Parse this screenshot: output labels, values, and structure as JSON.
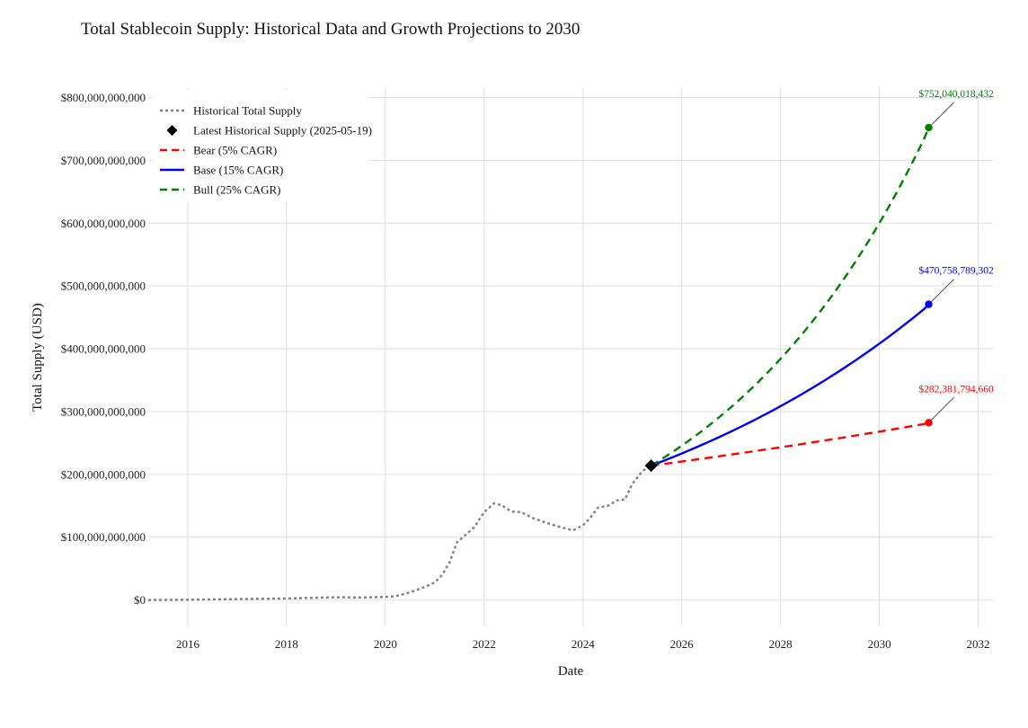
{
  "chart_data": {
    "type": "line",
    "title": "Total Stablecoin Supply: Historical Data and Growth Projections to 2030",
    "xlabel": "Date",
    "ylabel": "Total Supply (USD)",
    "xlim": [
      2015.2,
      2032.3
    ],
    "ylim": [
      -42000000000,
      815000000000
    ],
    "x_ticks": [
      2016,
      2018,
      2020,
      2022,
      2024,
      2026,
      2028,
      2030,
      2032
    ],
    "x_tick_labels": [
      "2016",
      "2018",
      "2020",
      "2022",
      "2024",
      "2026",
      "2028",
      "2030",
      "2032"
    ],
    "y_ticks": [
      0,
      100000000000,
      200000000000,
      300000000000,
      400000000000,
      500000000000,
      600000000000,
      700000000000,
      800000000000
    ],
    "y_tick_labels": [
      "$0",
      "$100,000,000,000",
      "$200,000,000,000",
      "$300,000,000,000",
      "$400,000,000,000",
      "$500,000,000,000",
      "$600,000,000,000",
      "$700,000,000,000",
      "$800,000,000,000"
    ],
    "grid": true,
    "legend_position": "top-left",
    "legend": [
      {
        "label": "Historical Total Supply",
        "style": "dotted-line",
        "color": "#808080"
      },
      {
        "label": "Latest Historical Supply (2025-05-19)",
        "style": "diamond",
        "color": "#000000"
      },
      {
        "label": "Bear (5% CAGR)",
        "style": "dashed-line",
        "color": "#ff0000"
      },
      {
        "label": "Base (15% CAGR)",
        "style": "solid-line",
        "color": "#0000ff"
      },
      {
        "label": "Bull (25% CAGR)",
        "style": "dashed-line",
        "color": "#008000"
      }
    ],
    "series": [
      {
        "name": "Historical Total Supply",
        "color": "#808080",
        "style": "dotted",
        "points": [
          [
            2015.2,
            0
          ],
          [
            2016.0,
            500000000.0
          ],
          [
            2017.0,
            1500000000.0
          ],
          [
            2018.0,
            2500000000.0
          ],
          [
            2019.0,
            4500000000.0
          ],
          [
            2019.5,
            4000000000.0
          ],
          [
            2020.0,
            5000000000.0
          ],
          [
            2020.2,
            6000000000.0
          ],
          [
            2020.4,
            10000000000.0
          ],
          [
            2020.6,
            15000000000.0
          ],
          [
            2020.8,
            21000000000.0
          ],
          [
            2021.0,
            28000000000.0
          ],
          [
            2021.15,
            40000000000.0
          ],
          [
            2021.3,
            60000000000.0
          ],
          [
            2021.45,
            92000000000.0
          ],
          [
            2021.6,
            102000000000.0
          ],
          [
            2021.8,
            116000000000.0
          ],
          [
            2022.0,
            140000000000.0
          ],
          [
            2022.2,
            154000000000.0
          ],
          [
            2022.35,
            151000000000.0
          ],
          [
            2022.55,
            141000000000.0
          ],
          [
            2022.75,
            140000000000.0
          ],
          [
            2023.0,
            130000000000.0
          ],
          [
            2023.3,
            122000000000.0
          ],
          [
            2023.55,
            116000000000.0
          ],
          [
            2023.8,
            111000000000.0
          ],
          [
            2024.0,
            119000000000.0
          ],
          [
            2024.15,
            131000000000.0
          ],
          [
            2024.3,
            147000000000.0
          ],
          [
            2024.5,
            150000000000.0
          ],
          [
            2024.7,
            159000000000.0
          ],
          [
            2024.85,
            160000000000.0
          ],
          [
            2025.0,
            185000000000.0
          ],
          [
            2025.2,
            205000000000.0
          ],
          [
            2025.38,
            214000000000.0
          ]
        ]
      },
      {
        "name": "Bear (5% CAGR)",
        "color": "#ff0000",
        "style": "dashed",
        "start": [
          2025.38,
          214000000000
        ],
        "cagr": 0.05,
        "end": [
          2031.0,
          282381794660
        ]
      },
      {
        "name": "Base (15% CAGR)",
        "color": "#0000ff",
        "style": "solid",
        "start": [
          2025.38,
          214000000000
        ],
        "cagr": 0.15,
        "end": [
          2031.0,
          470758789302
        ]
      },
      {
        "name": "Bull (25% CAGR)",
        "color": "#008000",
        "style": "dashed",
        "start": [
          2025.38,
          214000000000
        ],
        "cagr": 0.25,
        "end": [
          2031.0,
          752040018432
        ]
      }
    ],
    "latest_marker": {
      "x": 2025.38,
      "y": 214000000000,
      "color": "#000000"
    },
    "annotations": [
      {
        "text": "$752,040,018,432",
        "x": 2031.0,
        "y": 752040018432,
        "color": "#008000"
      },
      {
        "text": "$470,758,789,302",
        "x": 2031.0,
        "y": 470758789302,
        "color": "#0000ff"
      },
      {
        "text": "$282,381,794,660",
        "x": 2031.0,
        "y": 282381794660,
        "color": "#ff0000"
      }
    ]
  }
}
